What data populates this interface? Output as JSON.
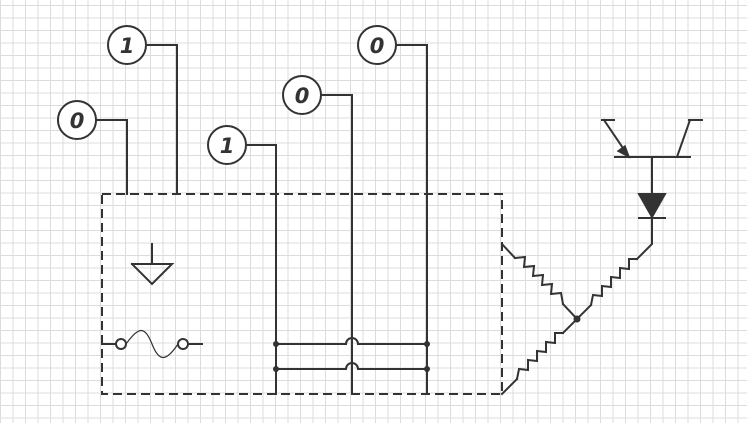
{
  "indicators": [
    {
      "id": "a",
      "value": "0"
    },
    {
      "id": "b",
      "value": "1"
    },
    {
      "id": "c",
      "value": "1"
    },
    {
      "id": "d",
      "value": "0"
    },
    {
      "id": "e",
      "value": "0"
    }
  ],
  "colors": {
    "line": "#333333",
    "grid": "#dcdcdc",
    "background": "#ffffff"
  },
  "icons": [
    "ground-icon",
    "fuse-icon",
    "transistor-icon",
    "diode-icon",
    "resistor-icon"
  ]
}
